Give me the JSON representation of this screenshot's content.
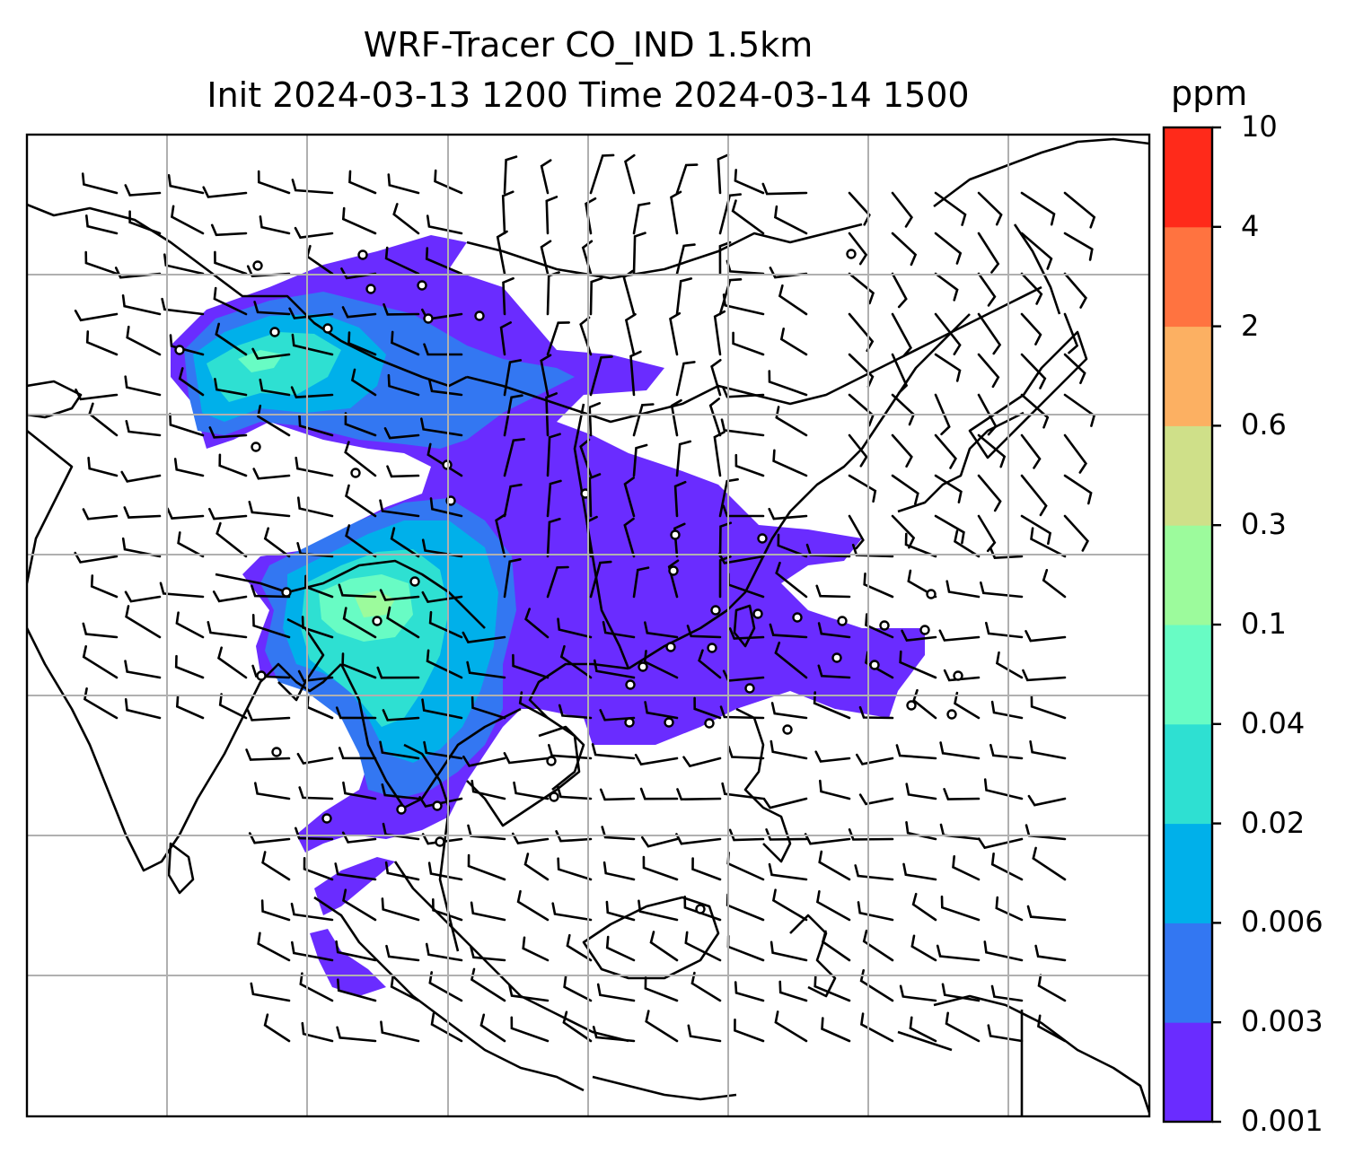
{
  "title": {
    "line1": "WRF-Tracer CO_IND 1.5km",
    "line2": "Init 2024-03-13 1200 Time 2024-03-14 1500"
  },
  "colorbar": {
    "unit": "ppm",
    "levels": [
      "0.001",
      "0.003",
      "0.006",
      "0.02",
      "0.04",
      "0.1",
      "0.3",
      "0.6",
      "2",
      "4",
      "10"
    ],
    "colors": [
      "#6a2cff",
      "#3377f2",
      "#00b0ea",
      "#2ee0d2",
      "#68fcc4",
      "#9cfb9c",
      "#cfe089",
      "#fcb062",
      "#ff7340",
      "#ff2a1a"
    ]
  },
  "map": {
    "gridlines": true,
    "coastlines": true,
    "plume_colors": {
      "lowest": "#6a2cff",
      "low": "#3377f2",
      "mid": "#00b0ea",
      "midhigh": "#2ee0d2",
      "high": "#68fcc4",
      "higher": "#9cfb9c"
    }
  }
}
